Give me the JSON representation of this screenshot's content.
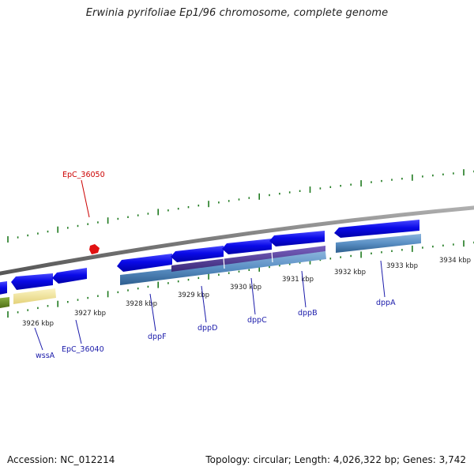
{
  "title": "Erwinia pyrifoliae Ep1/96 chromosome, complete genome",
  "footer": {
    "accession": "Accession: NC_012214",
    "topology": "Topology: circular; Length: 4,026,322 bp; Genes: 3,742"
  },
  "colors": {
    "backbone": "#8a8a8a",
    "gene_blue": "#0a0ae8",
    "gene_steel": "#5a8fc4",
    "gene_purple": "#553c99",
    "gene_yellow": "#f3e8a0",
    "gene_olive": "#6b8e23",
    "tick_green": "#1f7a1f",
    "label_blue": "#1a1aaa",
    "label_red": "#cc0000",
    "red_marker": "#e11111"
  },
  "scale_labels": [
    "3926 kbp",
    "3927 kbp",
    "3928 kbp",
    "3929 kbp",
    "3930 kbp",
    "3931 kbp",
    "3932 kbp",
    "3933 kbp",
    "3934 kbp"
  ],
  "gene_labels": [
    "EpC_36050",
    "wssA",
    "EpC_36040",
    "dppF",
    "dppD",
    "dppC",
    "dppB",
    "dppA"
  ]
}
